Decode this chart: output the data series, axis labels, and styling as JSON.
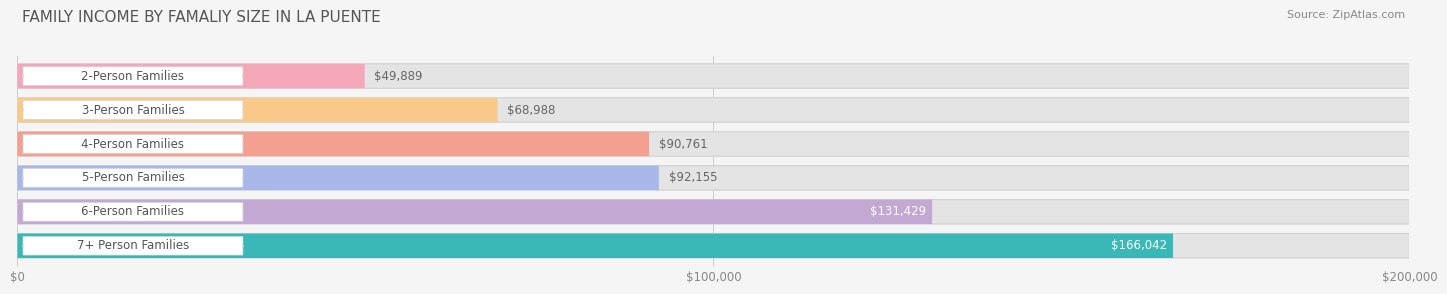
{
  "title": "FAMILY INCOME BY FAMALIY SIZE IN LA PUENTE",
  "source": "Source: ZipAtlas.com",
  "categories": [
    "2-Person Families",
    "3-Person Families",
    "4-Person Families",
    "5-Person Families",
    "6-Person Families",
    "7+ Person Families"
  ],
  "values": [
    49889,
    68988,
    90761,
    92155,
    131429,
    166042
  ],
  "bar_colors": [
    "#f4a7b9",
    "#f9c98a",
    "#f4a090",
    "#a8b8e8",
    "#c4a8d4",
    "#3ab8b8"
  ],
  "label_colors": [
    "#666666",
    "#666666",
    "#666666",
    "#666666",
    "#ffffff",
    "#ffffff"
  ],
  "label_inside": [
    false,
    false,
    false,
    false,
    true,
    true
  ],
  "value_labels": [
    "$49,889",
    "$68,988",
    "$90,761",
    "$92,155",
    "$131,429",
    "$166,042"
  ],
  "xlim": [
    0,
    200000
  ],
  "xticks": [
    0,
    100000,
    200000
  ],
  "xtick_labels": [
    "$0",
    "$100,000",
    "$200,000"
  ],
  "background_color": "#f5f5f5",
  "bar_bg_color": "#e4e4e4",
  "title_fontsize": 11,
  "label_fontsize": 8.5,
  "value_fontsize": 8.5,
  "source_fontsize": 8
}
